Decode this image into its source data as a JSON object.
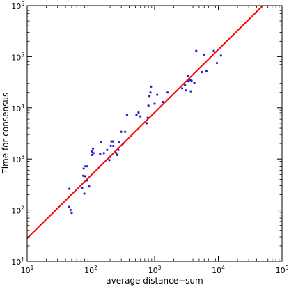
{
  "chart_data": {
    "type": "scatter",
    "xlabel": "average distance−sum",
    "ylabel": "Time for consensus",
    "xscale": "log",
    "yscale": "log",
    "xlim": [
      10,
      100000
    ],
    "ylim": [
      10,
      1000000
    ],
    "x_ticks": [
      {
        "value": 10,
        "base": "10",
        "exp": "1"
      },
      {
        "value": 100,
        "base": "10",
        "exp": "2"
      },
      {
        "value": 1000,
        "base": "10",
        "exp": "3"
      },
      {
        "value": 10000,
        "base": "10",
        "exp": "4"
      },
      {
        "value": 100000,
        "base": "10",
        "exp": "5"
      }
    ],
    "y_ticks": [
      {
        "value": 10,
        "base": "10",
        "exp": "1"
      },
      {
        "value": 100,
        "base": "10",
        "exp": "2"
      },
      {
        "value": 1000,
        "base": "10",
        "exp": "3"
      },
      {
        "value": 10000,
        "base": "10",
        "exp": "4"
      },
      {
        "value": 100000,
        "base": "10",
        "exp": "5"
      },
      {
        "value": 1000000,
        "base": "10",
        "exp": "6"
      }
    ],
    "grid": false,
    "legend": "none",
    "series": [
      {
        "kind": "scatter",
        "color": "#1f1fd6",
        "points": [
          [
            45,
            115
          ],
          [
            46,
            260
          ],
          [
            48,
            100
          ],
          [
            50,
            88
          ],
          [
            73,
            270
          ],
          [
            76,
            470
          ],
          [
            77,
            650
          ],
          [
            79,
            210
          ],
          [
            81,
            460
          ],
          [
            82,
            720
          ],
          [
            86,
            380
          ],
          [
            88,
            720
          ],
          [
            94,
            290
          ],
          [
            104,
            1200
          ],
          [
            105,
            1400
          ],
          [
            108,
            1600
          ],
          [
            110,
            1300
          ],
          [
            140,
            1250
          ],
          [
            144,
            2100
          ],
          [
            160,
            1300
          ],
          [
            180,
            1500
          ],
          [
            195,
            950
          ],
          [
            200,
            1100
          ],
          [
            205,
            1800
          ],
          [
            210,
            2200
          ],
          [
            220,
            2200
          ],
          [
            225,
            1800
          ],
          [
            250,
            1300
          ],
          [
            260,
            1200
          ],
          [
            270,
            1500
          ],
          [
            280,
            2100
          ],
          [
            300,
            3400
          ],
          [
            320,
            2000
          ],
          [
            345,
            3400
          ],
          [
            370,
            7200
          ],
          [
            520,
            7200
          ],
          [
            560,
            8100
          ],
          [
            600,
            6800
          ],
          [
            750,
            5000
          ],
          [
            780,
            6400
          ],
          [
            800,
            11000
          ],
          [
            830,
            17000
          ],
          [
            860,
            20000
          ],
          [
            880,
            26000
          ],
          [
            1000,
            12000
          ],
          [
            1100,
            18000
          ],
          [
            1350,
            13000
          ],
          [
            1600,
            20000
          ],
          [
            2700,
            24000
          ],
          [
            3000,
            28000
          ],
          [
            3100,
            22000
          ],
          [
            3300,
            42000
          ],
          [
            3400,
            33000
          ],
          [
            3600,
            35000
          ],
          [
            3700,
            21000
          ],
          [
            3800,
            34000
          ],
          [
            4200,
            31000
          ],
          [
            4500,
            130000
          ],
          [
            5500,
            50000
          ],
          [
            6000,
            110000
          ],
          [
            6500,
            52000
          ],
          [
            8500,
            130000
          ],
          [
            9500,
            75000
          ],
          [
            11000,
            105000
          ]
        ]
      },
      {
        "kind": "line",
        "color": "#ff0000",
        "points": [
          [
            10,
            28
          ],
          [
            50000,
            1000000
          ]
        ]
      }
    ]
  }
}
